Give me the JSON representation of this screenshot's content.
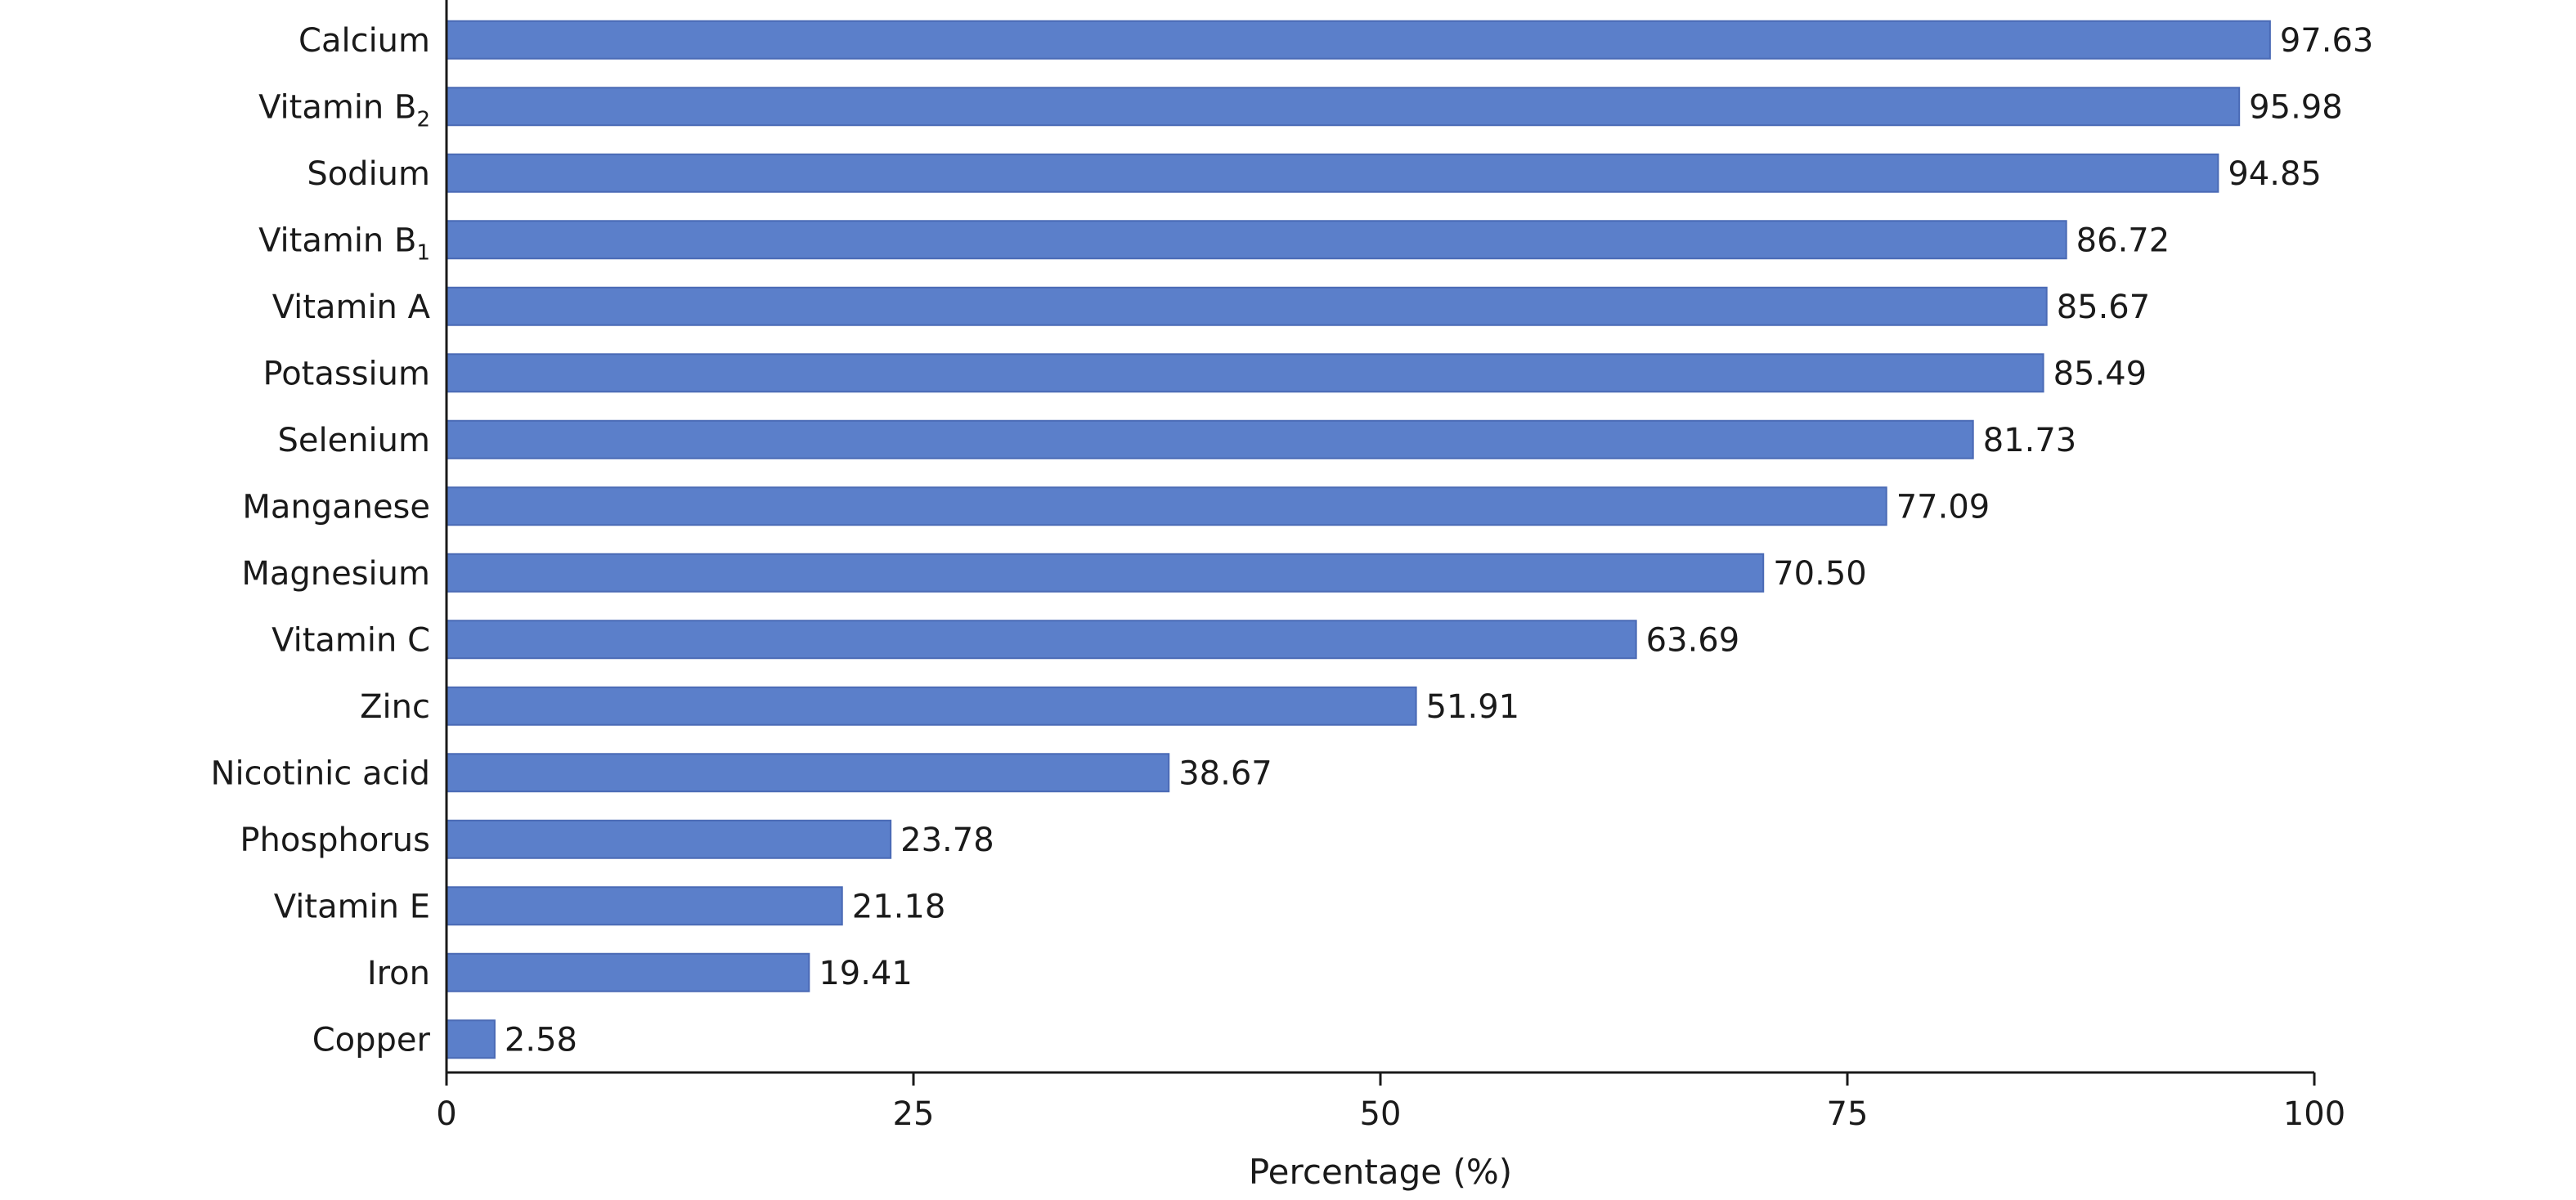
{
  "chart_data": {
    "type": "bar",
    "orientation": "horizontal",
    "categories": [
      {
        "base": "Calcium",
        "sub": ""
      },
      {
        "base": "Vitamin B",
        "sub": "2"
      },
      {
        "base": "Sodium",
        "sub": ""
      },
      {
        "base": "Vitamin B",
        "sub": "1"
      },
      {
        "base": "Vitamin A",
        "sub": ""
      },
      {
        "base": "Potassium",
        "sub": ""
      },
      {
        "base": "Selenium",
        "sub": ""
      },
      {
        "base": "Manganese",
        "sub": ""
      },
      {
        "base": "Magnesium",
        "sub": ""
      },
      {
        "base": "Vitamin C",
        "sub": ""
      },
      {
        "base": "Zinc",
        "sub": ""
      },
      {
        "base": "Nicotinic acid",
        "sub": ""
      },
      {
        "base": "Phosphorus",
        "sub": ""
      },
      {
        "base": "Vitamin E",
        "sub": ""
      },
      {
        "base": "Iron",
        "sub": ""
      },
      {
        "base": "Copper",
        "sub": ""
      }
    ],
    "values": [
      97.63,
      95.98,
      94.85,
      86.72,
      85.67,
      85.49,
      81.73,
      77.09,
      70.5,
      63.69,
      51.91,
      38.67,
      23.78,
      21.18,
      19.41,
      2.58
    ],
    "value_labels": [
      "97.63",
      "95.98",
      "94.85",
      "86.72",
      "85.67",
      "85.49",
      "81.73",
      "77.09",
      "70.50",
      "63.69",
      "51.91",
      "38.67",
      "23.78",
      "21.18",
      "19.41",
      "2.58"
    ],
    "xlim": [
      0,
      100
    ],
    "xticks": [
      0,
      25,
      50,
      75,
      100
    ],
    "xtick_labels": [
      "0",
      "25",
      "50",
      "75",
      "100"
    ],
    "xlabel": "Percentage (%)",
    "ylabel": "",
    "title": "",
    "grid": false,
    "bar_color": "#5b7fca",
    "bar_edge_color": "#4a6ab5",
    "axis_color": "#1a1a1a"
  }
}
